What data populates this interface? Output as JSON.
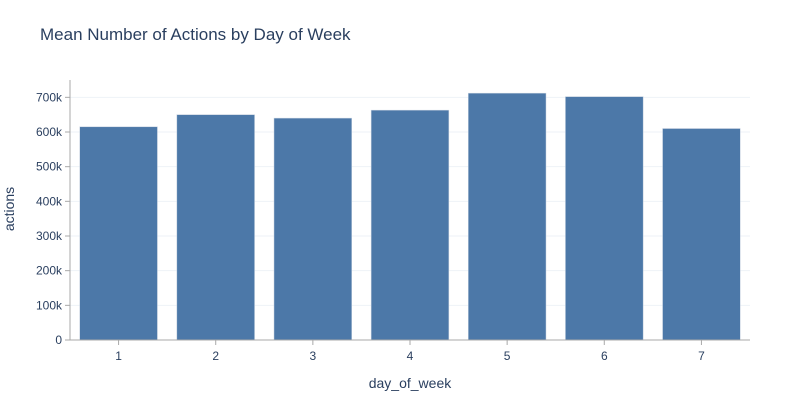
{
  "chart_data": {
    "type": "bar",
    "title": "Mean Number of Actions by Day of Week",
    "xlabel": "day_of_week",
    "ylabel": "actions",
    "categories": [
      "1",
      "2",
      "3",
      "4",
      "5",
      "6",
      "7"
    ],
    "values": [
      615000,
      650000,
      640000,
      663000,
      712000,
      702000,
      610000
    ],
    "ylim": [
      0,
      750000
    ],
    "yticks": [
      0,
      100000,
      200000,
      300000,
      400000,
      500000,
      600000,
      700000
    ],
    "ytick_labels": [
      "0",
      "100k",
      "200k",
      "300k",
      "400k",
      "500k",
      "600k",
      "700k"
    ],
    "grid": true,
    "legend": "none",
    "bar_color": "#4c78a8"
  }
}
